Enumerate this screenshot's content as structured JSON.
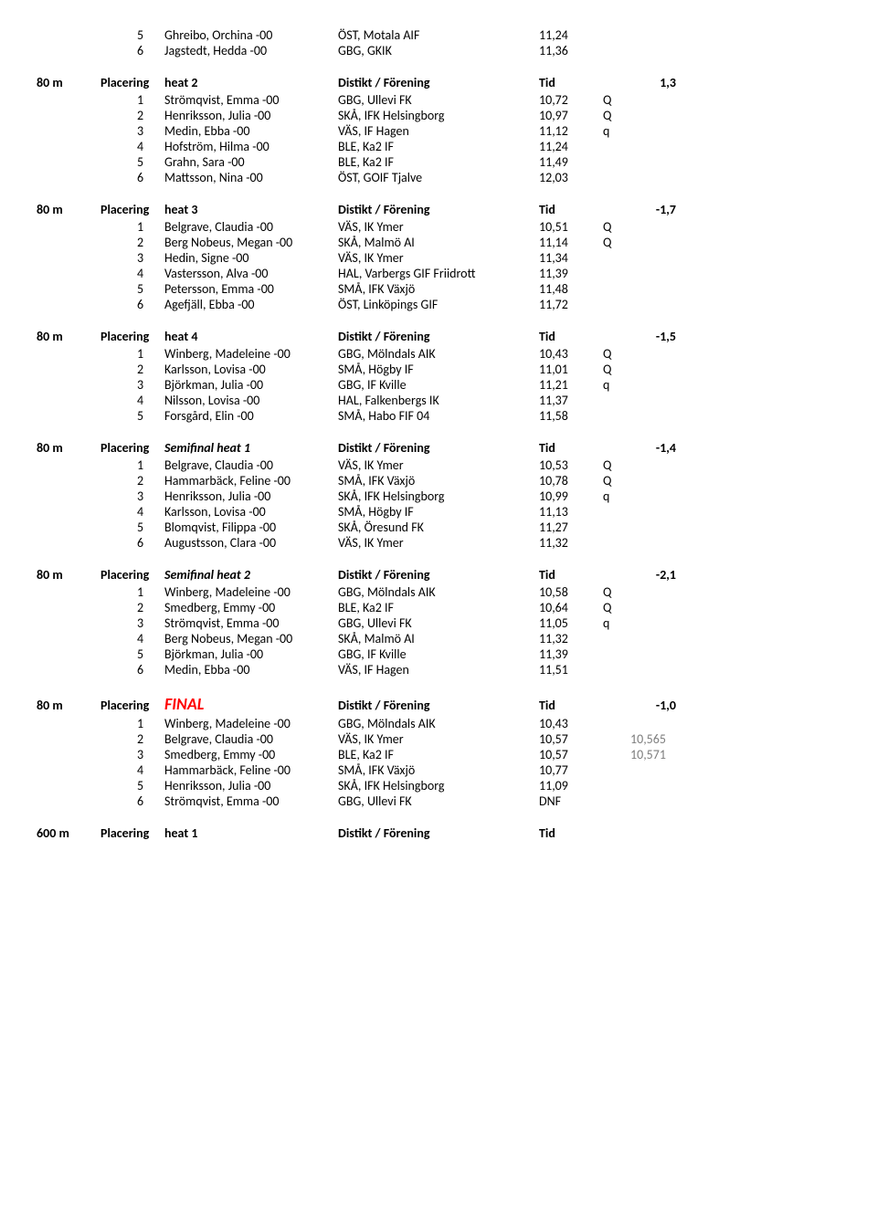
{
  "top_rows": [
    {
      "rank": "5",
      "name": "Ghreibo, Orchina -00",
      "club": "ÖST, Motala AIF",
      "time": "11,24",
      "q": "",
      "extra": ""
    },
    {
      "rank": "6",
      "name": "Jagstedt, Hedda -00",
      "club": "GBG, GKIK",
      "time": "11,36",
      "q": "",
      "extra": ""
    }
  ],
  "sections": [
    {
      "event": "80 m",
      "plac": "Placering",
      "heat": "heat 2",
      "heat_class": "",
      "distikt": "Distikt / Förening",
      "tid": "Tid",
      "wind": "1,3",
      "rows": [
        {
          "rank": "1",
          "name": "Strömqvist, Emma -00",
          "club": "GBG, Ullevi FK",
          "time": "10,72",
          "q": "Q",
          "extra": ""
        },
        {
          "rank": "2",
          "name": "Henriksson, Julia -00",
          "club": "SKÅ, IFK Helsingborg",
          "time": "10,97",
          "q": "Q",
          "extra": ""
        },
        {
          "rank": "3",
          "name": "Medin, Ebba -00",
          "club": "VÄS, IF Hagen",
          "time": "11,12",
          "q": "q",
          "extra": ""
        },
        {
          "rank": "4",
          "name": "Hofström, Hilma -00",
          "club": "BLE, Ka2 IF",
          "time": "11,24",
          "q": "",
          "extra": ""
        },
        {
          "rank": "5",
          "name": "Grahn, Sara -00",
          "club": "BLE, Ka2 IF",
          "time": "11,49",
          "q": "",
          "extra": ""
        },
        {
          "rank": "6",
          "name": "Mattsson, Nina -00",
          "club": "ÖST, GOIF Tjalve",
          "time": "12,03",
          "q": "",
          "extra": ""
        }
      ]
    },
    {
      "event": "80 m",
      "plac": "Placering",
      "heat": "heat 3",
      "heat_class": "",
      "distikt": "Distikt / Förening",
      "tid": "Tid",
      "wind": "-1,7",
      "rows": [
        {
          "rank": "1",
          "name": "Belgrave, Claudia -00",
          "club": "VÄS, IK Ymer",
          "time": "10,51",
          "q": "Q",
          "extra": ""
        },
        {
          "rank": "2",
          "name": "Berg Nobeus, Megan -00",
          "club": "SKÅ, Malmö AI",
          "time": "11,14",
          "q": "Q",
          "extra": ""
        },
        {
          "rank": "3",
          "name": "Hedin, Signe -00",
          "club": "VÄS, IK Ymer",
          "time": "11,34",
          "q": "",
          "extra": ""
        },
        {
          "rank": "4",
          "name": "Vastersson, Alva -00",
          "club": "HAL, Varbergs GIF Friidrott",
          "time": "11,39",
          "q": "",
          "extra": ""
        },
        {
          "rank": "5",
          "name": "Petersson, Emma -00",
          "club": "SMÅ, IFK Växjö",
          "time": "11,48",
          "q": "",
          "extra": ""
        },
        {
          "rank": "6",
          "name": "Agefjäll, Ebba -00",
          "club": "ÖST, Linköpings GIF",
          "time": "11,72",
          "q": "",
          "extra": ""
        }
      ]
    },
    {
      "event": "80 m",
      "plac": "Placering",
      "heat": "heat 4",
      "heat_class": "",
      "distikt": "Distikt / Förening",
      "tid": "Tid",
      "wind": "-1,5",
      "rows": [
        {
          "rank": "1",
          "name": "Winberg, Madeleine -00",
          "club": "GBG, Mölndals AIK",
          "time": "10,43",
          "q": "Q",
          "extra": ""
        },
        {
          "rank": "2",
          "name": "Karlsson, Lovisa -00",
          "club": "SMÅ, Högby IF",
          "time": "11,01",
          "q": "Q",
          "extra": ""
        },
        {
          "rank": "3",
          "name": "Björkman, Julia -00",
          "club": "GBG, IF Kville",
          "time": "11,21",
          "q": "q",
          "extra": ""
        },
        {
          "rank": "4",
          "name": "Nilsson, Lovisa -00",
          "club": "HAL, Falkenbergs IK",
          "time": "11,37",
          "q": "",
          "extra": ""
        },
        {
          "rank": "5",
          "name": "Forsgård, Elin -00",
          "club": "SMÅ, Habo FIF 04",
          "time": "11,58",
          "q": "",
          "extra": ""
        }
      ]
    },
    {
      "event": "80 m",
      "plac": "Placering",
      "heat": "Semifinal heat 1",
      "heat_class": "italic",
      "distikt": "Distikt / Förening",
      "tid": "Tid",
      "wind": "-1,4",
      "rows": [
        {
          "rank": "1",
          "name": "Belgrave, Claudia -00",
          "club": "VÄS, IK Ymer",
          "time": "10,53",
          "q": "Q",
          "extra": ""
        },
        {
          "rank": "2",
          "name": "Hammarbäck, Feline -00",
          "club": "SMÅ, IFK Växjö",
          "time": "10,78",
          "q": "Q",
          "extra": ""
        },
        {
          "rank": "3",
          "name": "Henriksson, Julia -00",
          "club": "SKÅ, IFK Helsingborg",
          "time": "10,99",
          "q": "q",
          "extra": ""
        },
        {
          "rank": "4",
          "name": "Karlsson, Lovisa -00",
          "club": "SMÅ, Högby IF",
          "time": "11,13",
          "q": "",
          "extra": ""
        },
        {
          "rank": "5",
          "name": "Blomqvist, Filippa -00",
          "club": "SKÅ, Öresund FK",
          "time": "11,27",
          "q": "",
          "extra": ""
        },
        {
          "rank": "6",
          "name": "Augustsson, Clara -00",
          "club": "VÄS, IK Ymer",
          "time": "11,32",
          "q": "",
          "extra": ""
        }
      ]
    },
    {
      "event": "80 m",
      "plac": "Placering",
      "heat": "Semifinal heat 2",
      "heat_class": "italic",
      "distikt": "Distikt / Förening",
      "tid": "Tid",
      "wind": "-2,1",
      "rows": [
        {
          "rank": "1",
          "name": "Winberg, Madeleine -00",
          "club": "GBG, Mölndals AIK",
          "time": "10,58",
          "q": "Q",
          "extra": ""
        },
        {
          "rank": "2",
          "name": "Smedberg, Emmy -00",
          "club": "BLE, Ka2 IF",
          "time": "10,64",
          "q": "Q",
          "extra": ""
        },
        {
          "rank": "3",
          "name": "Strömqvist, Emma -00",
          "club": "GBG, Ullevi FK",
          "time": "11,05",
          "q": "q",
          "extra": ""
        },
        {
          "rank": "4",
          "name": "Berg Nobeus, Megan -00",
          "club": "SKÅ, Malmö AI",
          "time": "11,32",
          "q": "",
          "extra": ""
        },
        {
          "rank": "5",
          "name": "Björkman, Julia -00",
          "club": "GBG, IF Kville",
          "time": "11,39",
          "q": "",
          "extra": ""
        },
        {
          "rank": "6",
          "name": "Medin, Ebba -00",
          "club": "VÄS, IF Hagen",
          "time": "11,51",
          "q": "",
          "extra": ""
        }
      ]
    },
    {
      "event": "80 m",
      "plac": "Placering",
      "heat": "FINAL",
      "heat_class": "final",
      "distikt": "Distikt / Förening",
      "tid": "Tid",
      "wind": "-1,0",
      "rows": [
        {
          "rank": "1",
          "name": "Winberg, Madeleine -00",
          "club": "GBG, Mölndals AIK",
          "time": "10,43",
          "q": "",
          "extra": ""
        },
        {
          "rank": "2",
          "name": "Belgrave, Claudia -00",
          "club": "VÄS, IK Ymer",
          "time": "10,57",
          "q": "",
          "extra": "10,565"
        },
        {
          "rank": "3",
          "name": "Smedberg, Emmy -00",
          "club": "BLE, Ka2 IF",
          "time": "10,57",
          "q": "",
          "extra": "10,571"
        },
        {
          "rank": "4",
          "name": "Hammarbäck, Feline -00",
          "club": "SMÅ, IFK Växjö",
          "time": "10,77",
          "q": "",
          "extra": ""
        },
        {
          "rank": "5",
          "name": "Henriksson, Julia -00",
          "club": "SKÅ, IFK Helsingborg",
          "time": "11,09",
          "q": "",
          "extra": ""
        },
        {
          "rank": "6",
          "name": "Strömqvist, Emma -00",
          "club": "GBG, Ullevi FK",
          "time": "DNF",
          "q": "",
          "extra": ""
        }
      ]
    }
  ],
  "bottom_header": {
    "event": "600 m",
    "plac": "Placering",
    "heat": "heat 1",
    "distikt": "Distikt / Förening",
    "tid": "Tid"
  }
}
